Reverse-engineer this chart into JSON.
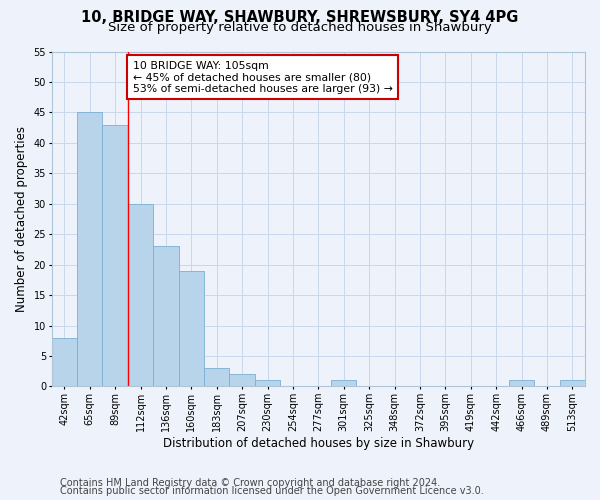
{
  "title": "10, BRIDGE WAY, SHAWBURY, SHREWSBURY, SY4 4PG",
  "subtitle": "Size of property relative to detached houses in Shawbury",
  "xlabel": "Distribution of detached houses by size in Shawbury",
  "ylabel": "Number of detached properties",
  "categories": [
    "42sqm",
    "65sqm",
    "89sqm",
    "112sqm",
    "136sqm",
    "160sqm",
    "183sqm",
    "207sqm",
    "230sqm",
    "254sqm",
    "277sqm",
    "301sqm",
    "325sqm",
    "348sqm",
    "372sqm",
    "395sqm",
    "419sqm",
    "442sqm",
    "466sqm",
    "489sqm",
    "513sqm"
  ],
  "values": [
    8,
    45,
    43,
    30,
    23,
    19,
    3,
    2,
    1,
    0,
    0,
    1,
    0,
    0,
    0,
    0,
    0,
    0,
    1,
    0,
    1
  ],
  "bar_color": "#b8d4ea",
  "bar_edge_color": "#7aafd4",
  "grid_color": "#c8d8ec",
  "bg_color": "#eef2fa",
  "annotation_text": "10 BRIDGE WAY: 105sqm\n← 45% of detached houses are smaller (80)\n53% of semi-detached houses are larger (93) →",
  "annotation_box_color": "#ffffff",
  "annotation_box_edge": "#cc0000",
  "ylim": [
    0,
    55
  ],
  "yticks": [
    0,
    5,
    10,
    15,
    20,
    25,
    30,
    35,
    40,
    45,
    50,
    55
  ],
  "footer1": "Contains HM Land Registry data © Crown copyright and database right 2024.",
  "footer2": "Contains public sector information licensed under the Open Government Licence v3.0.",
  "title_fontsize": 10.5,
  "subtitle_fontsize": 9.5,
  "xlabel_fontsize": 8.5,
  "ylabel_fontsize": 8.5,
  "tick_fontsize": 7,
  "footer_fontsize": 7,
  "ann_fontsize": 7.8
}
